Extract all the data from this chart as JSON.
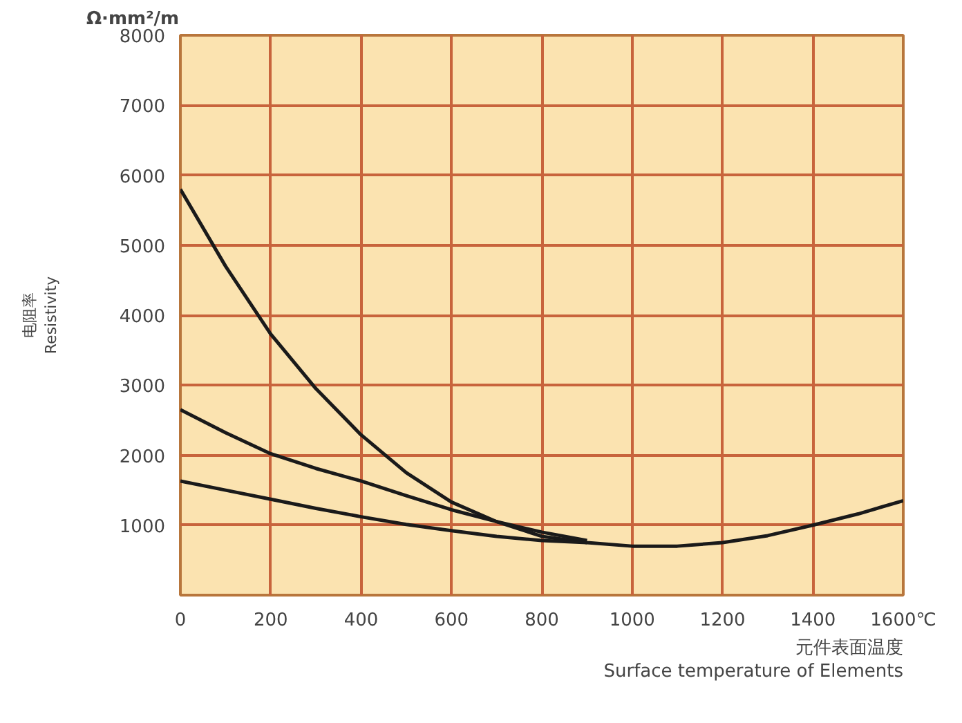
{
  "chart_data": {
    "type": "line",
    "xlabel": "元件表面温度\nSurface temperature of Elements",
    "ylabel": "电阻率\nResistivity",
    "annotations": [
      "Ω·mm²/m"
    ],
    "xlim": [
      0,
      1600
    ],
    "ylim": [
      0,
      8000
    ],
    "xticks": [
      0,
      200,
      400,
      600,
      800,
      1000,
      1200,
      1400,
      {
        "value": 1600,
        "label": "1600℃"
      }
    ],
    "yticks": [
      {
        "value": 0,
        "label": null
      },
      1000,
      2000,
      3000,
      4000,
      5000,
      6000,
      7000,
      8000
    ],
    "grid": true,
    "marker": "none",
    "line_style": "solid",
    "series": [
      {
        "color": "#1a1a1a",
        "x": [
          0,
          100,
          200,
          300,
          400,
          500,
          600,
          700,
          800,
          900,
          1000,
          1100,
          1200,
          1300,
          1400,
          1500,
          1600
        ],
        "values": [
          5800,
          4700,
          3730,
          2950,
          2290,
          1750,
          1330,
          1050,
          840,
          750,
          700,
          700,
          750,
          850,
          1000,
          1160,
          1350
        ]
      },
      {
        "color": "#1a1a1a",
        "x": [
          0,
          100,
          200,
          300,
          400,
          500,
          600,
          700,
          800,
          900
        ],
        "values": [
          2650,
          2320,
          2020,
          1810,
          1630,
          1420,
          1220,
          1050,
          900,
          780
        ]
      },
      {
        "color": "#1a1a1a",
        "x": [
          0,
          100,
          200,
          300,
          400,
          500,
          600,
          700,
          800,
          900
        ],
        "values": [
          1630,
          1500,
          1370,
          1240,
          1120,
          1010,
          920,
          840,
          780,
          750
        ]
      }
    ]
  }
}
